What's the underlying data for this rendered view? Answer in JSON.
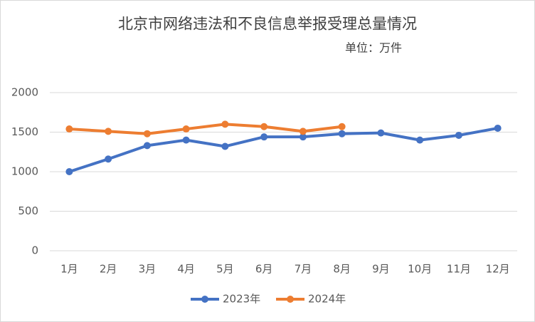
{
  "chart_data": {
    "type": "line",
    "title": "北京市网络违法和不良信息举报受理总量情况",
    "subtitle": "单位：万件",
    "categories": [
      "1月",
      "2月",
      "3月",
      "4月",
      "5月",
      "6月",
      "7月",
      "8月",
      "9月",
      "10月",
      "11月",
      "12月"
    ],
    "series": [
      {
        "name": "2023年",
        "color": "#4472c4",
        "values": [
          1000,
          1160,
          1330,
          1400,
          1320,
          1440,
          1440,
          1480,
          1490,
          1400,
          1460,
          1550
        ]
      },
      {
        "name": "2024年",
        "color": "#ed7d31",
        "values": [
          1540,
          1510,
          1480,
          1540,
          1600,
          1570,
          1510,
          1570,
          null,
          null,
          null,
          null
        ]
      }
    ],
    "ylim": [
      0,
      2000
    ],
    "yticks": [
      0,
      500,
      1000,
      1500,
      2000
    ],
    "grid": true,
    "legend": "bottom"
  }
}
